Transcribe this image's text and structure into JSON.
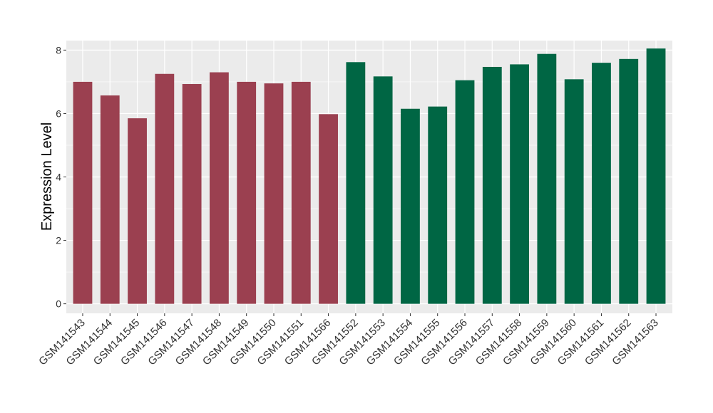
{
  "chart_data": {
    "type": "bar",
    "ylabel": "Expression Level",
    "xlabel": "",
    "ylim": [
      -0.3,
      8.3
    ],
    "yticks": [
      0,
      2,
      4,
      6,
      8
    ],
    "grid": true,
    "categories": [
      "GSM141543",
      "GSM141544",
      "GSM141545",
      "GSM141546",
      "GSM141547",
      "GSM141548",
      "GSM141549",
      "GSM141550",
      "GSM141551",
      "GSM141566",
      "GSM141552",
      "GSM141553",
      "GSM141554",
      "GSM141555",
      "GSM141556",
      "GSM141557",
      "GSM141558",
      "GSM141559",
      "GSM141560",
      "GSM141561",
      "GSM141562",
      "GSM141563"
    ],
    "values": [
      7.0,
      6.57,
      5.85,
      7.25,
      6.93,
      7.3,
      7.0,
      6.95,
      7.0,
      5.98,
      7.62,
      7.17,
      6.15,
      6.22,
      7.05,
      7.47,
      7.55,
      7.88,
      7.08,
      7.6,
      7.72,
      8.05
    ],
    "groups": [
      0,
      0,
      0,
      0,
      0,
      0,
      0,
      0,
      0,
      0,
      1,
      1,
      1,
      1,
      1,
      1,
      1,
      1,
      1,
      1,
      1,
      1
    ],
    "colors": [
      "#9b4050",
      "#006644"
    ],
    "panel_background": "#ebebeb",
    "grid_color": "#ffffff"
  }
}
